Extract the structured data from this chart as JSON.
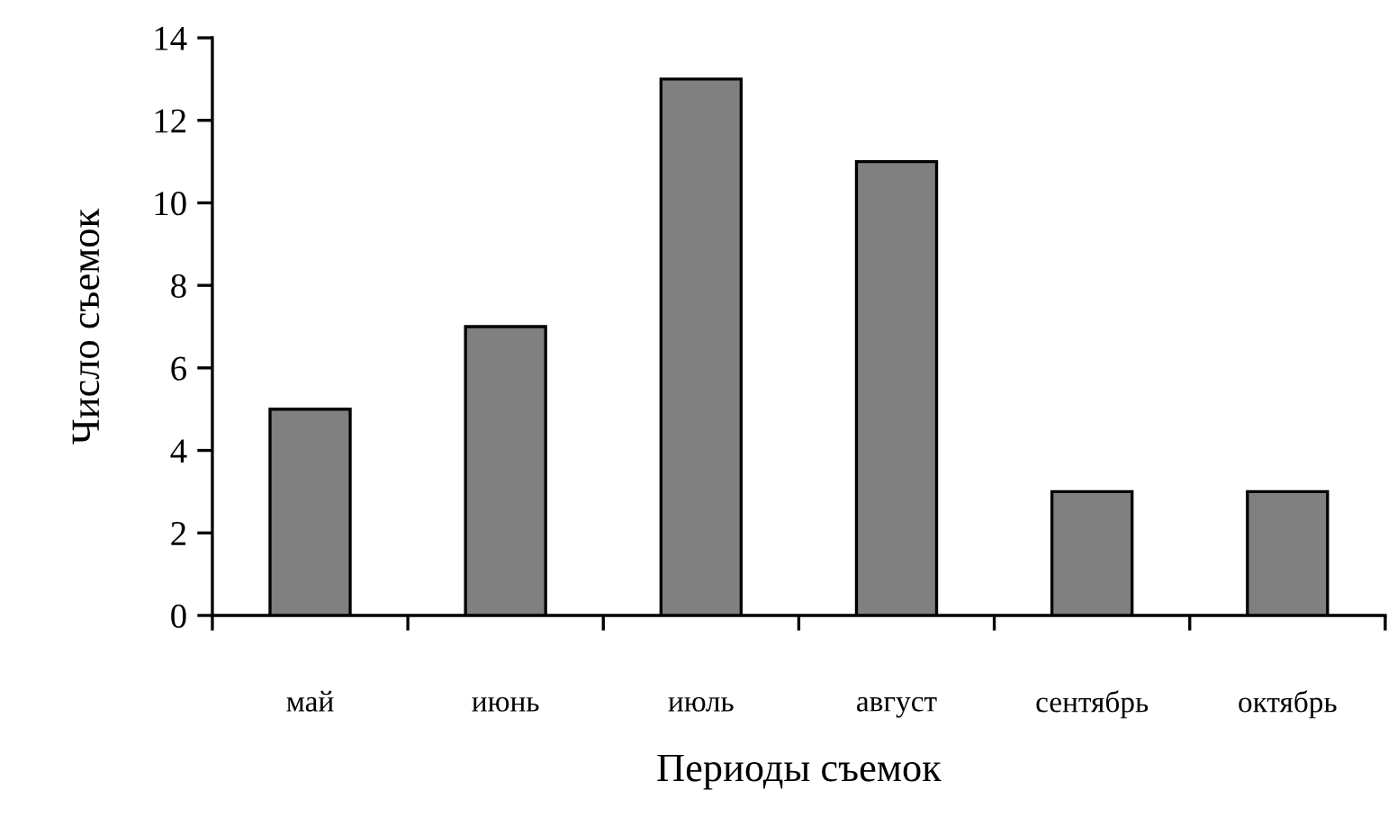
{
  "chart_data": {
    "type": "bar",
    "xlabel": "Периоды съемок",
    "ylabel": "Число съемок",
    "categories": [
      "май",
      "июнь",
      "июль",
      "август",
      "сентябрь",
      "октябрь"
    ],
    "values": [
      5,
      7,
      13,
      11,
      3,
      3
    ],
    "color": "#808080",
    "ylim": [
      0,
      14
    ],
    "yticks": [
      0,
      2,
      4,
      6,
      8,
      10,
      12,
      14
    ]
  }
}
